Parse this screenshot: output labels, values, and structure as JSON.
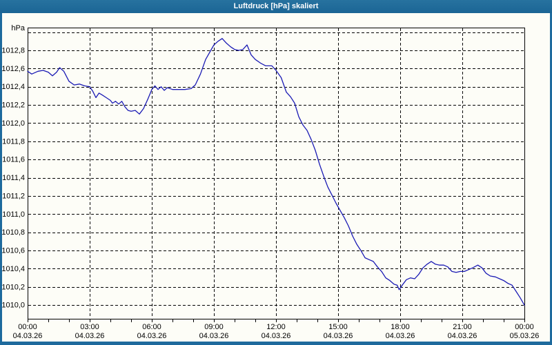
{
  "window": {
    "title": "Luftdruck [hPa] skaliert",
    "titlebar_color": "#1e6a9d",
    "border_color": "#1e6a9d",
    "content_background": "#fdfdf7"
  },
  "chart_data": {
    "type": "line",
    "title": "Luftdruck [hPa] skaliert",
    "unit_label": "hPa",
    "line_color": "#1a1ab4",
    "grid": "dashed-black",
    "legend_position": "none",
    "x_axis": {
      "range_hours": [
        0,
        24
      ],
      "minor_tick_every_hours": 1,
      "major_ticks": [
        {
          "hour": 0,
          "time": "00:00",
          "date": "04.03.26"
        },
        {
          "hour": 3,
          "time": "03:00",
          "date": "04.03.26"
        },
        {
          "hour": 6,
          "time": "06:00",
          "date": "04.03.26"
        },
        {
          "hour": 9,
          "time": "09:00",
          "date": "04.03.26"
        },
        {
          "hour": 12,
          "time": "12:00",
          "date": "04.03.26"
        },
        {
          "hour": 15,
          "time": "15:00",
          "date": "04.03.26"
        },
        {
          "hour": 18,
          "time": "18:00",
          "date": "04.03.26"
        },
        {
          "hour": 21,
          "time": "21:00",
          "date": "04.03.26"
        },
        {
          "hour": 24,
          "time": "00:00",
          "date": "05.03.26"
        }
      ]
    },
    "y_axis": {
      "min": 1009.85,
      "max": 1013.05,
      "gridline_step": 0.2,
      "gridlines": [
        1013.0,
        1012.8,
        1012.6,
        1012.4,
        1012.2,
        1012.0,
        1011.8,
        1011.6,
        1011.4,
        1011.2,
        1011.0,
        1010.8,
        1010.6,
        1010.4,
        1010.2,
        1010.0
      ],
      "tick_labels": [
        "",
        "1012,8",
        "1012,6",
        "1012,4",
        "1012,2",
        "1012,0",
        "1011,8",
        "1011,6",
        "1011,4",
        "1011,2",
        "1011,0",
        "1010,8",
        "1010,6",
        "1010,4",
        "1010,2",
        "1010,0"
      ]
    },
    "series": [
      {
        "name": "Luftdruck",
        "points": [
          [
            0.0,
            1012.57
          ],
          [
            0.2,
            1012.54
          ],
          [
            0.5,
            1012.57
          ],
          [
            0.75,
            1012.58
          ],
          [
            1.0,
            1012.56
          ],
          [
            1.2,
            1012.52
          ],
          [
            1.4,
            1012.56
          ],
          [
            1.55,
            1012.61
          ],
          [
            1.75,
            1012.57
          ],
          [
            2.0,
            1012.46
          ],
          [
            2.25,
            1012.42
          ],
          [
            2.5,
            1012.43
          ],
          [
            2.75,
            1012.41
          ],
          [
            3.0,
            1012.4
          ],
          [
            3.15,
            1012.35
          ],
          [
            3.3,
            1012.28
          ],
          [
            3.45,
            1012.33
          ],
          [
            3.6,
            1012.31
          ],
          [
            3.8,
            1012.28
          ],
          [
            4.0,
            1012.25
          ],
          [
            4.1,
            1012.22
          ],
          [
            4.25,
            1012.24
          ],
          [
            4.4,
            1012.21
          ],
          [
            4.55,
            1012.24
          ],
          [
            4.7,
            1012.18
          ],
          [
            4.85,
            1012.14
          ],
          [
            5.0,
            1012.13
          ],
          [
            5.2,
            1012.14
          ],
          [
            5.4,
            1012.1
          ],
          [
            5.6,
            1012.16
          ],
          [
            5.8,
            1012.26
          ],
          [
            6.0,
            1012.37
          ],
          [
            6.15,
            1012.41
          ],
          [
            6.3,
            1012.37
          ],
          [
            6.45,
            1012.4
          ],
          [
            6.6,
            1012.36
          ],
          [
            6.75,
            1012.39
          ],
          [
            7.0,
            1012.37
          ],
          [
            7.3,
            1012.37
          ],
          [
            7.6,
            1012.37
          ],
          [
            7.9,
            1012.38
          ],
          [
            8.1,
            1012.42
          ],
          [
            8.35,
            1012.54
          ],
          [
            8.6,
            1012.7
          ],
          [
            8.85,
            1012.8
          ],
          [
            9.0,
            1012.86
          ],
          [
            9.2,
            1012.9
          ],
          [
            9.4,
            1012.93
          ],
          [
            9.6,
            1012.88
          ],
          [
            9.8,
            1012.84
          ],
          [
            10.0,
            1012.81
          ],
          [
            10.2,
            1012.8
          ],
          [
            10.4,
            1012.81
          ],
          [
            10.6,
            1012.86
          ],
          [
            10.8,
            1012.75
          ],
          [
            11.0,
            1012.7
          ],
          [
            11.25,
            1012.66
          ],
          [
            11.5,
            1012.63
          ],
          [
            11.8,
            1012.63
          ],
          [
            12.0,
            1012.58
          ],
          [
            12.25,
            1012.5
          ],
          [
            12.5,
            1012.34
          ],
          [
            12.7,
            1012.29
          ],
          [
            12.9,
            1012.22
          ],
          [
            13.1,
            1012.07
          ],
          [
            13.3,
            1011.98
          ],
          [
            13.5,
            1011.92
          ],
          [
            13.7,
            1011.82
          ],
          [
            13.9,
            1011.7
          ],
          [
            14.1,
            1011.55
          ],
          [
            14.3,
            1011.42
          ],
          [
            14.5,
            1011.3
          ],
          [
            14.7,
            1011.21
          ],
          [
            14.9,
            1011.12
          ],
          [
            15.1,
            1011.04
          ],
          [
            15.3,
            1010.96
          ],
          [
            15.5,
            1010.87
          ],
          [
            15.7,
            1010.76
          ],
          [
            15.9,
            1010.67
          ],
          [
            16.1,
            1010.6
          ],
          [
            16.3,
            1010.52
          ],
          [
            16.5,
            1010.5
          ],
          [
            16.7,
            1010.48
          ],
          [
            16.9,
            1010.42
          ],
          [
            17.1,
            1010.37
          ],
          [
            17.3,
            1010.3
          ],
          [
            17.5,
            1010.27
          ],
          [
            17.7,
            1010.23
          ],
          [
            17.85,
            1010.22
          ],
          [
            17.95,
            1010.17
          ],
          [
            18.1,
            1010.22
          ],
          [
            18.3,
            1010.28
          ],
          [
            18.5,
            1010.3
          ],
          [
            18.7,
            1010.29
          ],
          [
            18.9,
            1010.34
          ],
          [
            19.1,
            1010.41
          ],
          [
            19.3,
            1010.45
          ],
          [
            19.5,
            1010.48
          ],
          [
            19.7,
            1010.45
          ],
          [
            19.9,
            1010.44
          ],
          [
            20.1,
            1010.44
          ],
          [
            20.3,
            1010.42
          ],
          [
            20.5,
            1010.37
          ],
          [
            20.7,
            1010.36
          ],
          [
            20.9,
            1010.37
          ],
          [
            21.1,
            1010.37
          ],
          [
            21.3,
            1010.39
          ],
          [
            21.5,
            1010.41
          ],
          [
            21.75,
            1010.44
          ],
          [
            21.95,
            1010.41
          ],
          [
            22.15,
            1010.35
          ],
          [
            22.35,
            1010.32
          ],
          [
            22.6,
            1010.31
          ],
          [
            22.8,
            1010.29
          ],
          [
            23.0,
            1010.27
          ],
          [
            23.2,
            1010.24
          ],
          [
            23.4,
            1010.22
          ],
          [
            23.6,
            1010.15
          ],
          [
            23.8,
            1010.08
          ],
          [
            23.95,
            1010.02
          ],
          [
            24.0,
            1010.0
          ]
        ]
      }
    ]
  }
}
